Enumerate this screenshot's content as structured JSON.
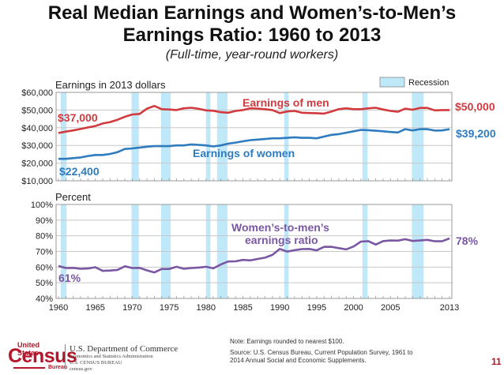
{
  "title_line1": "Real Median Earnings and Women’s-to-Men’s",
  "title_line2": "Earnings Ratio: 1960 to 2013",
  "subtitle": "(Full-time, year-round workers)",
  "colors": {
    "men": "#d13a3f",
    "women": "#2e7cbf",
    "ratio": "#7a57a3",
    "recession": "#bfe8f8",
    "grid": "#c8c8c8",
    "brand": "#b5162b"
  },
  "chart_data": [
    {
      "type": "line",
      "panel": "top",
      "ylabel": "Earnings in 2013 dollars",
      "ylim": [
        10000,
        60000
      ],
      "yticks": [
        10000,
        20000,
        30000,
        40000,
        50000,
        60000
      ],
      "ytick_labels": [
        "$10,000",
        "$20,000",
        "$30,000",
        "$40,000",
        "$50,000",
        "$60,000"
      ],
      "xlim": [
        1960,
        2013
      ],
      "grid": true,
      "legend": {
        "label": "Recession",
        "placement": "top-right"
      },
      "recessions": [
        [
          1960.3,
          1961.1
        ],
        [
          1969.9,
          1970.9
        ],
        [
          1973.9,
          1975.2
        ],
        [
          1980.0,
          1980.6
        ],
        [
          1981.5,
          1982.9
        ],
        [
          1990.6,
          1991.2
        ],
        [
          2001.2,
          2001.9
        ],
        [
          2007.9,
          2009.5
        ]
      ],
      "x": [
        1960,
        1961,
        1962,
        1963,
        1964,
        1965,
        1966,
        1967,
        1968,
        1969,
        1970,
        1971,
        1972,
        1973,
        1974,
        1975,
        1976,
        1977,
        1978,
        1979,
        1980,
        1981,
        1982,
        1983,
        1984,
        1985,
        1986,
        1987,
        1988,
        1989,
        1990,
        1991,
        1992,
        1993,
        1994,
        1995,
        1996,
        1997,
        1998,
        1999,
        2000,
        2001,
        2002,
        2003,
        2004,
        2005,
        2006,
        2007,
        2008,
        2009,
        2010,
        2011,
        2012,
        2013
      ],
      "series": [
        {
          "name": "Earnings of men",
          "start_label": "$37,000",
          "end_label": "$50,000",
          "values": [
            37000,
            37800,
            38500,
            39300,
            40200,
            41000,
            42400,
            43200,
            44500,
            46200,
            47500,
            47800,
            50800,
            52300,
            50500,
            50300,
            50000,
            51000,
            51300,
            50700,
            49800,
            49600,
            48800,
            48500,
            49500,
            50000,
            51000,
            50800,
            50500,
            50000,
            48300,
            49200,
            49500,
            48500,
            48300,
            48200,
            48000,
            49200,
            50500,
            51000,
            50500,
            50500,
            51000,
            51300,
            50300,
            49500,
            49000,
            50800,
            50200,
            51200,
            51200,
            49800,
            50000,
            50000
          ]
        },
        {
          "name": "Earnings of women",
          "start_label": "$22,400",
          "end_label": "$39,200",
          "values": [
            22400,
            22400,
            22800,
            23200,
            24000,
            24600,
            24600,
            25200,
            26200,
            28000,
            28300,
            28800,
            29300,
            29600,
            29600,
            29600,
            30000,
            30000,
            30600,
            30300,
            30000,
            29400,
            30000,
            31000,
            31600,
            32300,
            33000,
            33300,
            33600,
            34000,
            34000,
            34300,
            34600,
            34300,
            34300,
            34000,
            35000,
            36000,
            36400,
            37200,
            38000,
            38800,
            38600,
            38300,
            38000,
            37600,
            37300,
            39200,
            38500,
            39200,
            39200,
            38400,
            38500,
            39200
          ]
        }
      ]
    },
    {
      "type": "line",
      "panel": "bottom",
      "ylabel": "Percent",
      "ylim": [
        40,
        100
      ],
      "yticks": [
        40,
        50,
        60,
        70,
        80,
        90,
        100
      ],
      "ytick_labels": [
        "40%",
        "50%",
        "60%",
        "70%",
        "80%",
        "90%",
        "100%"
      ],
      "xlim": [
        1960,
        2013
      ],
      "xticks": [
        1960,
        1965,
        1970,
        1975,
        1980,
        1985,
        1990,
        1995,
        2000,
        2005,
        2013
      ],
      "xtick_labels": [
        "1960",
        "1965",
        "1970",
        "1975",
        "1980",
        "1985",
        "1990",
        "1995",
        "2000",
        "2005",
        "2013"
      ],
      "grid": true,
      "recessions": [
        [
          1960.3,
          1961.1
        ],
        [
          1969.9,
          1970.9
        ],
        [
          1973.9,
          1975.2
        ],
        [
          1980.0,
          1980.6
        ],
        [
          1981.5,
          1982.9
        ],
        [
          1990.6,
          1991.2
        ],
        [
          2001.2,
          2001.9
        ],
        [
          2007.9,
          2009.5
        ]
      ],
      "x": [
        1960,
        1961,
        1962,
        1963,
        1964,
        1965,
        1966,
        1967,
        1968,
        1969,
        1970,
        1971,
        1972,
        1973,
        1974,
        1975,
        1976,
        1977,
        1978,
        1979,
        1980,
        1981,
        1982,
        1983,
        1984,
        1985,
        1986,
        1987,
        1988,
        1989,
        1990,
        1991,
        1992,
        1993,
        1994,
        1995,
        1996,
        1997,
        1998,
        1999,
        2000,
        2001,
        2002,
        2003,
        2004,
        2005,
        2006,
        2007,
        2008,
        2009,
        2010,
        2011,
        2012,
        2013
      ],
      "series": [
        {
          "name": "Women’s-to-men’s earnings ratio",
          "label_line1": "Women’s-to-men’s",
          "label_line2": "earnings ratio",
          "start_label": "61%",
          "end_label": "78%",
          "values": [
            60.7,
            59.4,
            59.5,
            58.9,
            59.1,
            59.9,
            57.6,
            57.8,
            58.2,
            60.5,
            59.4,
            59.5,
            57.9,
            56.6,
            58.8,
            58.8,
            60.2,
            58.9,
            59.4,
            59.7,
            60.2,
            59.2,
            61.7,
            63.6,
            63.7,
            64.6,
            64.3,
            65.2,
            66.0,
            67.8,
            71.6,
            69.9,
            70.8,
            71.5,
            71.6,
            70.7,
            72.9,
            73.0,
            72.1,
            71.3,
            73.2,
            76.3,
            76.6,
            74.4,
            76.6,
            77.0,
            76.9,
            77.8,
            76.7,
            77.0,
            77.4,
            76.5,
            76.5,
            78.3
          ]
        }
      ]
    }
  ],
  "footer": {
    "logo_top": "United States",
    "logo_main": "Census",
    "logo_bottom": "Bureau",
    "dept_line1": "U.S. Department of Commerce",
    "dept_line2": "Economics and Statistics Administration",
    "dept_line3": "U.S. CENSUS BUREAU",
    "dept_line4": "census.gov",
    "note": "Note: Earnings rounded to nearest $100.",
    "source": "Source: U.S. Census Bureau, Current Population Survey, 1961 to 2014 Annual Social and Economic Supplements.",
    "page_number": "11"
  }
}
